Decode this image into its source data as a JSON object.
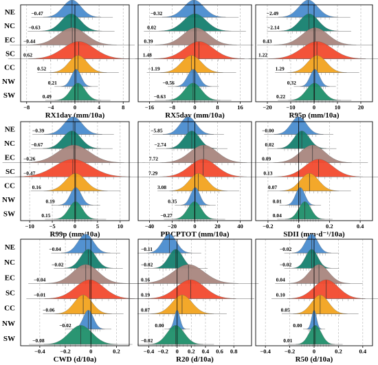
{
  "regions": [
    "NE",
    "NC",
    "EC",
    "SC",
    "CC",
    "NW",
    "SW"
  ],
  "colors": {
    "NE": "#4a8ccf",
    "NC": "#157f6f",
    "EC": "#a9867e",
    "SC": "#f24a2e",
    "CC": "#f2a31f",
    "NW": "#4a8ccf",
    "SW": "#1f8f6a"
  },
  "chart_data": [
    {
      "type": "density-ridgeline",
      "xlabel": "RX1day (mm/10a)",
      "xlim": [
        -9,
        9
      ],
      "xticks": [
        -8,
        -4,
        0,
        4,
        8
      ],
      "medians": [
        -0.47,
        -0.63,
        -0.44,
        0.62,
        0.52,
        0.21,
        0.49
      ],
      "labels": [
        "−0.47",
        "−0.63",
        "−0.44",
        "0.62",
        "0.52",
        "0.21",
        "0.49"
      ],
      "spread": [
        1.5,
        1.6,
        2.3,
        2.6,
        1.5,
        0.8,
        1.2
      ]
    },
    {
      "type": "density-ridgeline",
      "xlabel": "RX5day (mm/10a)",
      "xlim": [
        -20,
        20
      ],
      "xticks": [
        -16,
        -8,
        0,
        8,
        16
      ],
      "medians": [
        -0.32,
        0.02,
        0.39,
        1.48,
        -1.19,
        -0.56,
        -0.63
      ],
      "labels": [
        "−0.32",
        "0.02",
        "0.39",
        "1.48",
        "−1.19",
        "−0.56",
        "−0.63"
      ],
      "spread": [
        3.5,
        4.0,
        4.5,
        5.0,
        3.5,
        2.0,
        3.0
      ]
    },
    {
      "type": "density-ridgeline",
      "xlabel": "R95p (mm/10a)",
      "xlim": [
        -25,
        25
      ],
      "xticks": [
        -20,
        -10,
        0,
        10,
        20
      ],
      "medians": [
        -2.49,
        -2.14,
        0.43,
        1.22,
        1.29,
        0.32,
        0.22
      ],
      "labels": [
        "−2.49",
        "−2.14",
        "0.43",
        "1.22",
        "1.29",
        "0.32",
        "0.22"
      ],
      "spread": [
        4.0,
        4.0,
        5.5,
        6.5,
        4.0,
        2.0,
        3.5
      ]
    },
    {
      "type": "density-ridgeline",
      "xlabel": "R99p (mm/10a)",
      "xlim": [
        -12,
        12
      ],
      "xticks": [
        -10,
        -5,
        0,
        5,
        10
      ],
      "medians": [
        -0.39,
        -0.67,
        -0.26,
        -0.47,
        0.16,
        0.19,
        0.15
      ],
      "labels": [
        "−0.39",
        "−0.67",
        "−0.26",
        "−0.47",
        "0.16",
        "0.19",
        "0.15"
      ],
      "spread": [
        2.0,
        2.0,
        3.5,
        4.0,
        2.2,
        1.2,
        1.5
      ]
    },
    {
      "type": "density-ridgeline",
      "xlabel": "PRCPTOT (mm/10a)",
      "xlim": [
        -50,
        50
      ],
      "xticks": [
        -40,
        -20,
        0,
        20,
        40
      ],
      "medians": [
        -5.85,
        -2.74,
        7.72,
        7.29,
        3.08,
        0.35,
        -0.27
      ],
      "labels": [
        "−5.85",
        "−2.74",
        "7.72",
        "7.29",
        "3.08",
        "0.35",
        "−0.27"
      ],
      "spread": [
        7.0,
        7.0,
        12.0,
        12.0,
        8.0,
        4.0,
        6.0
      ]
    },
    {
      "type": "density-ridgeline",
      "xlabel": "SDII (mm·d⁻¹/10a)",
      "xlim": [
        -0.28,
        0.48
      ],
      "xticks": [
        -0.2,
        0,
        0.2,
        0.4
      ],
      "medians": [
        -0.0,
        0.02,
        0.09,
        0.13,
        0.07,
        0.01,
        0.04
      ],
      "labels": [
        "−0.00",
        "0.02",
        "0.09",
        "0.13",
        "0.07",
        "0.01",
        "0.04"
      ],
      "spread": [
        0.05,
        0.05,
        0.08,
        0.09,
        0.06,
        0.03,
        0.04
      ]
    },
    {
      "type": "density-ridgeline",
      "xlabel": "CWD (d/10a)",
      "xlim": [
        -0.55,
        0.3
      ],
      "xticks": [
        -0.4,
        -0.2,
        0,
        0.2
      ],
      "medians": [
        -0.04,
        -0.02,
        -0.04,
        -0.01,
        -0.06,
        -0.02,
        -0.08
      ],
      "labels": [
        "−0.04",
        "−0.02",
        "−0.04",
        "−0.01",
        "−0.06",
        "−0.02",
        "−0.08"
      ],
      "spread": [
        0.06,
        0.06,
        0.1,
        0.11,
        0.07,
        0.04,
        0.09
      ]
    },
    {
      "type": "density-ridgeline",
      "xlabel": "R20 (d/10a)",
      "xlim": [
        -0.55,
        1.05
      ],
      "xticks": [
        -0.4,
        -0.2,
        0,
        0.2,
        0.4,
        0.6,
        0.8
      ],
      "medians": [
        -0.11,
        -0.02,
        0.16,
        0.19,
        0.07,
        0.0,
        -0.02
      ],
      "labels": [
        "−0.11",
        "−0.02",
        "0.16",
        "0.19",
        "0.07",
        "0.00",
        "−0.02"
      ],
      "spread": [
        0.1,
        0.1,
        0.22,
        0.2,
        0.14,
        0.04,
        0.12
      ]
    },
    {
      "type": "density-ridgeline",
      "xlabel": "R50 (d/10a)",
      "xlim": [
        -0.48,
        0.48
      ],
      "xticks": [
        -0.4,
        -0.2,
        0,
        0.2,
        0.4
      ],
      "medians": [
        -0.02,
        -0.02,
        0.04,
        0.1,
        0.05,
        0.0,
        0.01
      ],
      "labels": [
        "−0.02",
        "−0.02",
        "0.04",
        "0.10",
        "0.05",
        "0.00",
        "0.01"
      ],
      "spread": [
        0.05,
        0.05,
        0.08,
        0.1,
        0.07,
        0.02,
        0.05
      ]
    }
  ]
}
